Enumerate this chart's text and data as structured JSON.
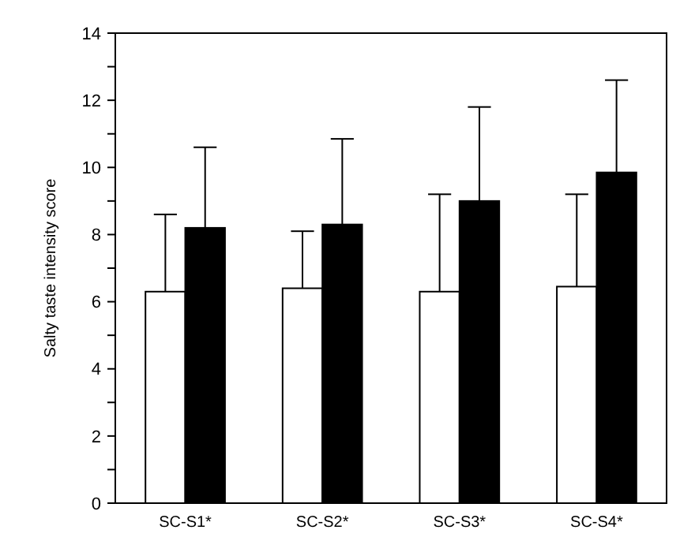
{
  "chart_data": {
    "type": "bar",
    "ylabel": "Salty taste intensity score",
    "categories": [
      "SC-S1*",
      "SC-S2*",
      "SC-S3*",
      "SC-S4*"
    ],
    "series": [
      {
        "color": "#ffffff",
        "values": [
          6.3,
          6.4,
          6.3,
          6.45
        ],
        "errors": [
          [
            6.3,
            8.6
          ],
          [
            6.4,
            8.1
          ],
          [
            6.3,
            9.2
          ],
          [
            6.45,
            9.2
          ]
        ]
      },
      {
        "color": "#000000",
        "values": [
          8.2,
          8.3,
          9.0,
          9.85
        ],
        "errors": [
          [
            8.2,
            10.6
          ],
          [
            8.3,
            10.85
          ],
          [
            9.0,
            11.8
          ],
          [
            9.85,
            12.6
          ]
        ]
      }
    ],
    "ylim": [
      0,
      14
    ],
    "yticks": [
      0,
      {
        "value": 1,
        "label": null
      },
      2,
      {
        "value": 3,
        "label": null
      },
      4,
      {
        "value": 5,
        "label": null
      },
      6,
      {
        "value": 7,
        "label": null
      },
      8,
      {
        "value": 9,
        "label": null
      },
      10,
      {
        "value": 11,
        "label": null
      },
      12,
      {
        "value": 13,
        "label": null
      },
      14
    ]
  }
}
